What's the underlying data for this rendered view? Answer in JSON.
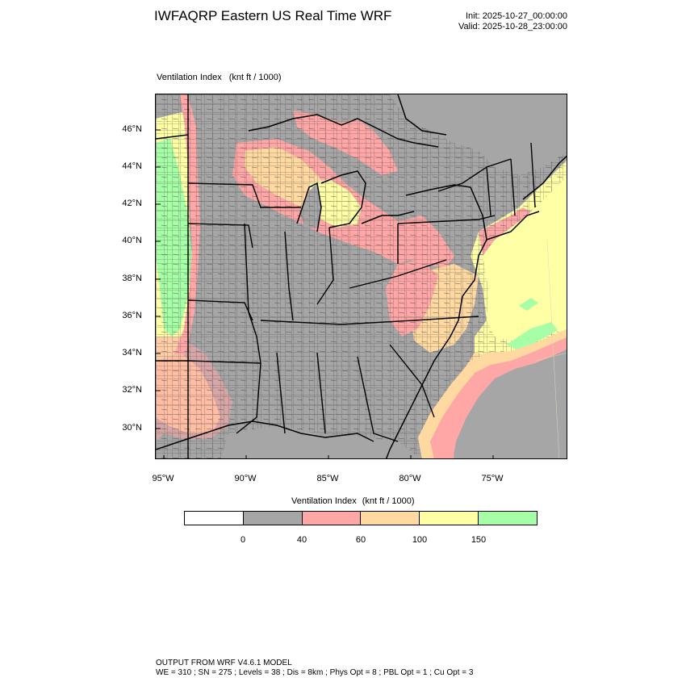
{
  "header": {
    "title": "IWFAQRP Eastern US Real Time WRF",
    "init": "Init: 2025-10-27_00:00:00",
    "valid": "Valid: 2025-10-28_23:00:00"
  },
  "map": {
    "field_name": "Ventilation Index",
    "field_units": "(knt ft / 1000)",
    "lat_labels": [
      "46°N",
      "44°N",
      "42°N",
      "40°N",
      "38°N",
      "36°N",
      "34°N",
      "32°N",
      "30°N"
    ],
    "lon_labels": [
      "95°W",
      "90°W",
      "85°W",
      "80°W",
      "75°W"
    ],
    "colors": {
      "gray": "#a6a6a6",
      "pink": "#ffa6a6",
      "orange": "#ffd9a0",
      "yellow": "#ffffa6",
      "green": "#a6ffa6",
      "ocean_gray": "#a6a6a6"
    }
  },
  "colorbar": {
    "title": "Ventilation Index",
    "units": "(knt ft / 1000)",
    "colors": [
      "#ffffff",
      "#a6a6a6",
      "#ffa6a6",
      "#ffd9a0",
      "#ffffa6",
      "#a6ffa6"
    ],
    "ticks": [
      "0",
      "40",
      "60",
      "100",
      "150"
    ]
  },
  "footer": {
    "line1": "OUTPUT FROM WRF V4.6.1 MODEL",
    "line2": "WE = 310 ; SN = 275 ; Levels = 38 ; Dis = 8km ; Phys Opt = 8 ; PBL Opt = 1 ; Cu Opt = 3"
  }
}
